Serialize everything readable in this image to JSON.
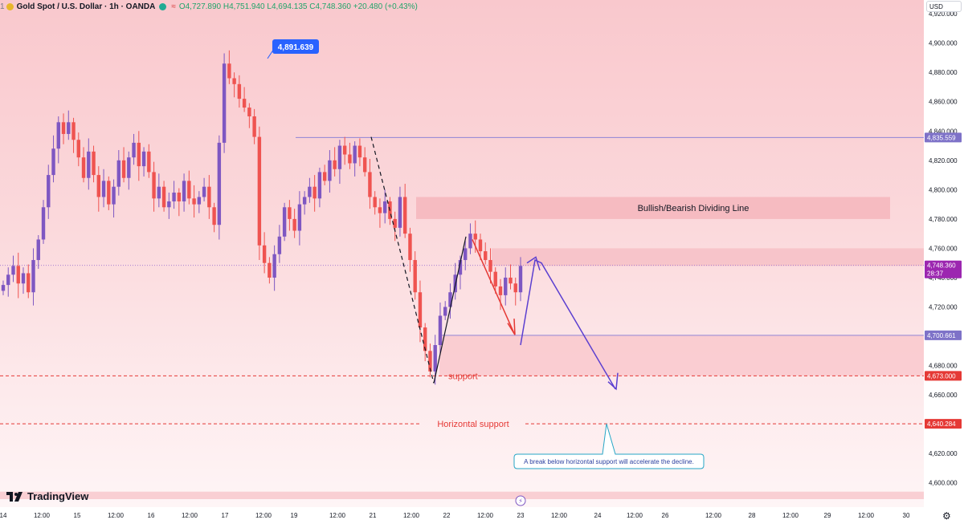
{
  "header": {
    "symbol_prefix": "1",
    "title": "Gold Spot / U.S. Dollar · 1h · OANDA",
    "open": "O4,727.890",
    "high": "H4,751.940",
    "low": "L4,694.135",
    "close": "C4,748.360",
    "change": "+20.480 (+0.43%)"
  },
  "currency_button": "USD",
  "brand": "TradingView",
  "icons": [
    "gold-coin-icon",
    "status-dot-icon",
    "wave-icon",
    "tradingview-logo-icon",
    "gear-icon",
    "lightning-icon"
  ],
  "colors": {
    "up": "#7e57c2",
    "down": "#ef5350",
    "annotation_blue": "#5b3fd0",
    "annotation_red": "#e53935",
    "teal": "#26a6c6"
  },
  "chart_data": {
    "type": "candlestick",
    "ylim": [
      4590,
      4925
    ],
    "y_ticks": [
      "4,920.000",
      "4,900.000",
      "4,880.000",
      "4,860.000",
      "4,840.000",
      "4,820.000",
      "4,800.000",
      "4,780.000",
      "4,760.000",
      "4,740.000",
      "4,720.000",
      "4,700.000",
      "4,680.000",
      "4,660.000",
      "4,640.000",
      "4,620.000",
      "4,600.000"
    ],
    "y_tick_values": [
      4920,
      4900,
      4880,
      4860,
      4840,
      4820,
      4800,
      4780,
      4760,
      4740,
      4720,
      4700,
      4680,
      4660,
      4640,
      4620,
      4600
    ],
    "x_ticks": [
      "14",
      "12:00",
      "15",
      "12:00",
      "16",
      "12:00",
      "17",
      "12:00",
      "19",
      "12:00",
      "21",
      "12:00",
      "22",
      "12:00",
      "23",
      "12:00",
      "24",
      "12:00",
      "26",
      "12:00",
      "28",
      "12:00",
      "29",
      "12:00",
      "30"
    ],
    "x_tick_positions": [
      4,
      52,
      96,
      144,
      188,
      236,
      280,
      328,
      366,
      420,
      464,
      512,
      556,
      604,
      648,
      696,
      744,
      790,
      828,
      888,
      936,
      984,
      1030,
      1078,
      1128
    ],
    "price_labels": [
      {
        "text": "4,835.559",
        "value": 4835.559,
        "color": "#7e72c8"
      },
      {
        "text": "4,748.360",
        "value": 4748.36,
        "color": "#9c27b0",
        "sub": "28:37"
      },
      {
        "text": "4,700.661",
        "value": 4700.661,
        "color": "#7e72c8"
      },
      {
        "text": "4,673.000",
        "value": 4673.0,
        "color": "#e53935"
      },
      {
        "text": "4,640.284",
        "value": 4640.284,
        "color": "#e53935"
      }
    ],
    "high_callout": "4,891.639",
    "high_value": 4891.639,
    "zones": [
      {
        "from": 4780,
        "to": 4795,
        "label": "Bullish/Bearish Dividing Line"
      },
      {
        "from": 4748,
        "to": 4760
      },
      {
        "from": 4673,
        "to": 4700.661
      }
    ],
    "horizontal_lines": [
      {
        "value": 4835.559,
        "label": ""
      },
      {
        "value": 4673.0,
        "label": "support"
      },
      {
        "value": 4640.284,
        "label": "Horizontal support"
      }
    ],
    "annotation": "A break below horizontal support will accelerate the decline.",
    "projection_path": [
      [
        4696,
        4694
      ],
      [
        4686,
        4753
      ],
      [
        4767,
        4664
      ]
    ],
    "closes": [
      4735,
      4742,
      4748,
      4736,
      4743,
      4730,
      4752,
      4766,
      4788,
      4810,
      4828,
      4846,
      4838,
      4846,
      4834,
      4822,
      4808,
      4826,
      4810,
      4795,
      4806,
      4790,
      4802,
      4820,
      4808,
      4822,
      4832,
      4816,
      4826,
      4812,
      4794,
      4802,
      4788,
      4792,
      4798,
      4792,
      4806,
      4794,
      4790,
      4795,
      4802,
      4788,
      4776,
      4832,
      4886,
      4876,
      4872,
      4862,
      4856,
      4850,
      4836,
      4762,
      4750,
      4740,
      4756,
      4768,
      4788,
      4780,
      4772,
      4790,
      4795,
      4802,
      4794,
      4812,
      4806,
      4820,
      4814,
      4830,
      4824,
      4818,
      4830,
      4822,
      4812,
      4795,
      4788,
      4784,
      4792,
      4780,
      4774,
      4795,
      4770,
      4752,
      4730,
      4706,
      4690,
      4676,
      4694,
      4714,
      4720,
      4730,
      4742,
      4752,
      4760,
      4770,
      4766,
      4758,
      4752,
      4744,
      4734,
      4728,
      4740,
      4736,
      4730,
      4748
    ]
  }
}
